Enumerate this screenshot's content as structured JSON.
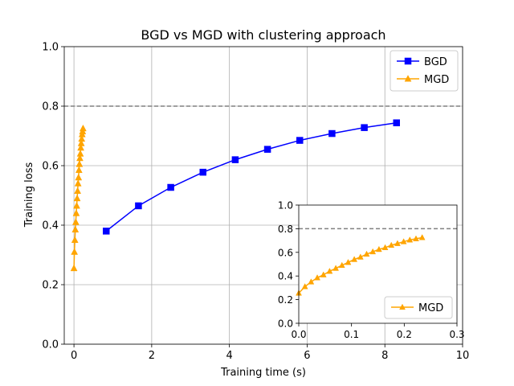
{
  "chart_data": [
    {
      "type": "line",
      "title": "BGD vs MGD with clustering approach",
      "xlabel": "Training time (s)",
      "ylabel": "Training loss",
      "xlim": [
        -0.25,
        10.0
      ],
      "ylim": [
        0.0,
        1.0
      ],
      "xticks": [
        0,
        2,
        4,
        6,
        8,
        10
      ],
      "yticks": [
        0.0,
        0.2,
        0.4,
        0.6,
        0.8,
        1.0
      ],
      "xtick_labels": [
        "0",
        "2",
        "4",
        "6",
        "8",
        "10"
      ],
      "ytick_labels": [
        "0.0",
        "0.2",
        "0.4",
        "0.6",
        "0.8",
        "1.0"
      ],
      "grid": true,
      "reference_line": {
        "y": 0.8,
        "style": "dashed",
        "color": "#808080"
      },
      "legend": {
        "position": "top-right"
      },
      "series": [
        {
          "name": "BGD",
          "color": "#0000ff",
          "marker": "square",
          "x": [
            0.83,
            1.66,
            2.49,
            3.32,
            4.15,
            4.98,
            5.81,
            6.64,
            7.47,
            8.3
          ],
          "y": [
            0.38,
            0.465,
            0.527,
            0.578,
            0.62,
            0.655,
            0.685,
            0.708,
            0.728,
            0.744
          ]
        },
        {
          "name": "MGD",
          "color": "#ffa500",
          "marker": "triangle",
          "x": [
            0.0,
            0.0117,
            0.0234,
            0.0351,
            0.0468,
            0.0585,
            0.0702,
            0.0819,
            0.0936,
            0.1053,
            0.117,
            0.1287,
            0.1404,
            0.1521,
            0.1638,
            0.1755,
            0.1872,
            0.1989,
            0.2106,
            0.2223,
            0.234
          ],
          "y": [
            0.255,
            0.31,
            0.35,
            0.385,
            0.41,
            0.44,
            0.465,
            0.49,
            0.515,
            0.54,
            0.56,
            0.585,
            0.605,
            0.625,
            0.64,
            0.66,
            0.675,
            0.69,
            0.705,
            0.715,
            0.725
          ]
        }
      ]
    },
    {
      "type": "line",
      "title": "",
      "xlabel": "",
      "ylabel": "",
      "xlim": [
        0.0,
        0.3
      ],
      "ylim": [
        0.0,
        1.0
      ],
      "xticks": [
        0.0,
        0.1,
        0.2,
        0.3
      ],
      "yticks": [
        0.0,
        0.2,
        0.4,
        0.6,
        0.8,
        1.0
      ],
      "xtick_labels": [
        "0.0",
        "0.1",
        "0.2",
        "0.3"
      ],
      "ytick_labels": [
        "0.0",
        "0.2",
        "0.4",
        "0.6",
        "0.8",
        "1.0"
      ],
      "grid": false,
      "reference_line": {
        "y": 0.8,
        "style": "dashed",
        "color": "#808080"
      },
      "legend": {
        "position": "bottom-right"
      },
      "series": [
        {
          "name": "MGD",
          "color": "#ffa500",
          "marker": "triangle",
          "x": [
            0.0,
            0.0117,
            0.0234,
            0.0351,
            0.0468,
            0.0585,
            0.0702,
            0.0819,
            0.0936,
            0.1053,
            0.117,
            0.1287,
            0.1404,
            0.1521,
            0.1638,
            0.1755,
            0.1872,
            0.1989,
            0.2106,
            0.2223,
            0.234
          ],
          "y": [
            0.255,
            0.31,
            0.35,
            0.385,
            0.41,
            0.44,
            0.465,
            0.49,
            0.515,
            0.54,
            0.56,
            0.585,
            0.605,
            0.625,
            0.64,
            0.66,
            0.675,
            0.69,
            0.705,
            0.715,
            0.725
          ]
        }
      ]
    }
  ]
}
